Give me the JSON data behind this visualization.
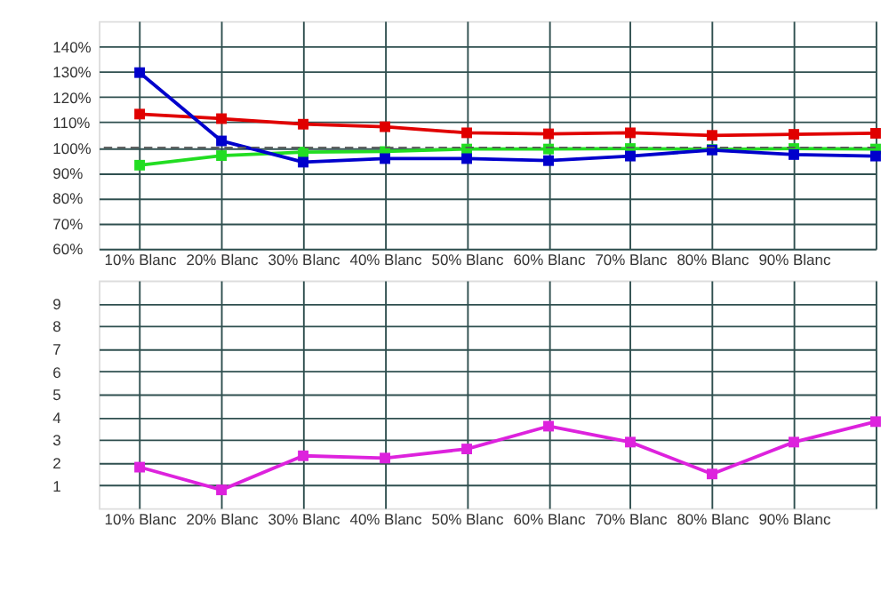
{
  "chart_data": [
    {
      "type": "line",
      "categories": [
        "10% Blanc",
        "20% Blanc",
        "30% Blanc",
        "40% Blanc",
        "50% Blanc",
        "60% Blanc",
        "70% Blanc",
        "80% Blanc",
        "90% Blanc",
        null
      ],
      "series": [
        {
          "color": "#e00000",
          "values": [
            113.2,
            111.4,
            109.2,
            108.2,
            105.8,
            105.4,
            105.8,
            104.8,
            105.2,
            105.6
          ]
        },
        {
          "color": "#22dd22",
          "values": [
            93,
            96.8,
            98.2,
            98.4,
            99.4,
            99.4,
            99.6,
            99.2,
            99.6,
            99.4
          ]
        },
        {
          "color": "#0000cc",
          "values": [
            129.6,
            102.6,
            94.2,
            95.6,
            95.6,
            94.8,
            96.6,
            99,
            97.2,
            96.6
          ]
        }
      ],
      "ylim": [
        60,
        150
      ],
      "yticks": [
        {
          "value": 60,
          "label": "60%"
        },
        {
          "value": 70,
          "label": "70%"
        },
        {
          "value": 80,
          "label": "80%"
        },
        {
          "value": 90,
          "label": "90%"
        },
        {
          "value": 100,
          "label": "100%"
        },
        {
          "value": 110,
          "label": "110%"
        },
        {
          "value": 120,
          "label": "120%"
        },
        {
          "value": 130,
          "label": "130%"
        },
        {
          "value": 140,
          "label": "140%"
        }
      ],
      "ref_lines": [
        {
          "axis": "y",
          "value": 100,
          "color": "#555555",
          "line_style": "dashed"
        }
      ],
      "grid": true,
      "marker": "square",
      "line_style": "solid"
    },
    {
      "type": "line",
      "categories": [
        "10% Blanc",
        "20% Blanc",
        "30% Blanc",
        "40% Blanc",
        "50% Blanc",
        "60% Blanc",
        "70% Blanc",
        "80% Blanc",
        "90% Blanc",
        null
      ],
      "series": [
        {
          "color": "#dd22dd",
          "values": [
            1.8,
            0.8,
            2.3,
            2.2,
            2.6,
            3.6,
            2.9,
            1.5,
            2.9,
            3.8
          ]
        }
      ],
      "ylim": [
        0,
        10
      ],
      "yticks": [
        1,
        2,
        3,
        4,
        5,
        6,
        7,
        8,
        9
      ],
      "grid": true,
      "marker": "square",
      "line_style": "solid"
    }
  ]
}
